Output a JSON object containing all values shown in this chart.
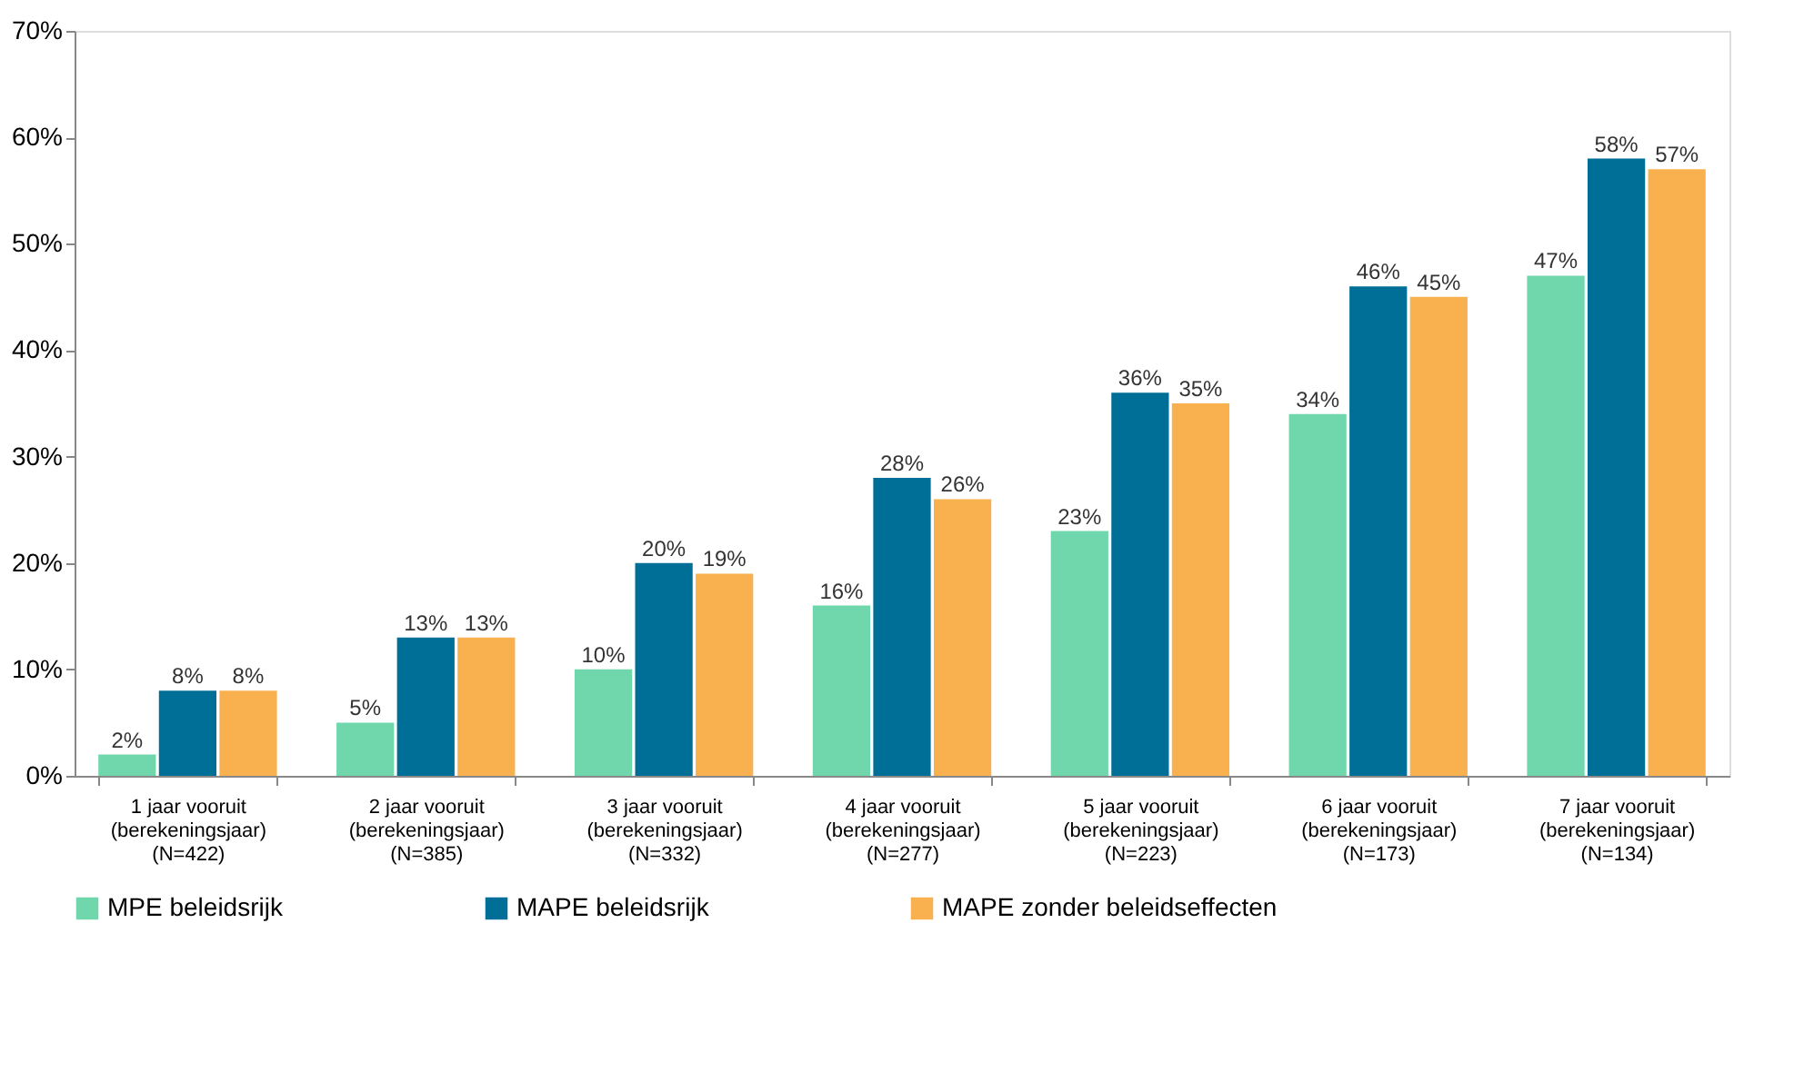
{
  "chart_data": {
    "type": "bar",
    "categories": [
      "1 jaar vooruit\n(berekeningsjaar)\n(N=422)",
      "2 jaar vooruit\n(berekeningsjaar)\n(N=385)",
      "3 jaar vooruit\n(berekeningsjaar)\n(N=332)",
      "4 jaar vooruit\n(berekeningsjaar)\n(N=277)",
      "5 jaar vooruit\n(berekeningsjaar)\n(N=223)",
      "6 jaar vooruit\n(berekeningsjaar)\n(N=173)",
      "7 jaar vooruit\n(berekeningsjaar)\n(N=134)"
    ],
    "series": [
      {
        "name": "MPE beleidsrijk",
        "color": "#6fd7ab",
        "values": [
          2,
          5,
          10,
          16,
          23,
          34,
          47
        ],
        "value_labels": [
          "2%",
          "5%",
          "10%",
          "16%",
          "23%",
          "34%",
          "47%"
        ]
      },
      {
        "name": "MAPE beleidsrijk",
        "color": "#006f97",
        "values": [
          8,
          13,
          20,
          28,
          36,
          46,
          58
        ],
        "value_labels": [
          "8%",
          "13%",
          "20%",
          "28%",
          "36%",
          "46%",
          "58%"
        ]
      },
      {
        "name": "MAPE zonder beleidseffecten",
        "color": "#f9b04f",
        "values": [
          8,
          13,
          19,
          26,
          35,
          45,
          57
        ],
        "value_labels": [
          "8%",
          "13%",
          "19%",
          "26%",
          "35%",
          "45%",
          "57%"
        ]
      }
    ],
    "ylim": [
      0,
      70
    ],
    "yticks": [
      {
        "value": 0,
        "label": "0%"
      },
      {
        "value": 10,
        "label": "10%"
      },
      {
        "value": 20,
        "label": "20%"
      },
      {
        "value": 30,
        "label": "30%"
      },
      {
        "value": 40,
        "label": "40%"
      },
      {
        "value": 50,
        "label": "50%"
      },
      {
        "value": 60,
        "label": "60%"
      },
      {
        "value": 70,
        "label": "70%"
      }
    ],
    "grid": false,
    "legend": "bottom"
  }
}
